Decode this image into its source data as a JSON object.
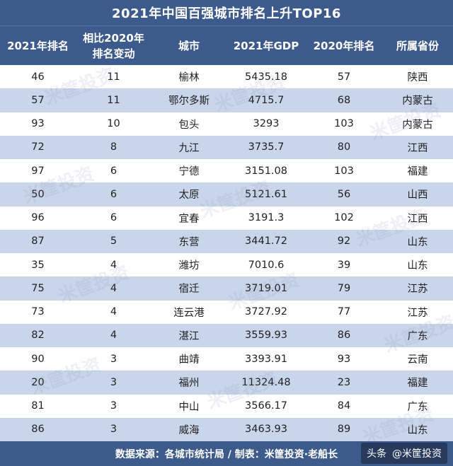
{
  "title": "2021年中国百强城市排名上升TOP16",
  "headers": {
    "rank_2021": "2021年排名",
    "change_line1": "相比2020年",
    "change_line2": "排名变动",
    "city": "城市",
    "gdp_2021": "2021年GDP",
    "rank_2020": "2020年排名",
    "province": "所属省份"
  },
  "rows": [
    {
      "rank_2021": "46",
      "change": "11",
      "city": "榆林",
      "gdp": "5435.18",
      "rank_2020": "57",
      "province": "陕西"
    },
    {
      "rank_2021": "57",
      "change": "11",
      "city": "鄂尔多斯",
      "gdp": "4715.7",
      "rank_2020": "68",
      "province": "内蒙古"
    },
    {
      "rank_2021": "93",
      "change": "10",
      "city": "包头",
      "gdp": "3293",
      "rank_2020": "103",
      "province": "内蒙古"
    },
    {
      "rank_2021": "72",
      "change": "8",
      "city": "九江",
      "gdp": "3735.7",
      "rank_2020": "80",
      "province": "江西"
    },
    {
      "rank_2021": "97",
      "change": "6",
      "city": "宁德",
      "gdp": "3151.08",
      "rank_2020": "103",
      "province": "福建"
    },
    {
      "rank_2021": "50",
      "change": "6",
      "city": "太原",
      "gdp": "5121.61",
      "rank_2020": "56",
      "province": "山西"
    },
    {
      "rank_2021": "96",
      "change": "6",
      "city": "宜春",
      "gdp": "3191.3",
      "rank_2020": "102",
      "province": "江西"
    },
    {
      "rank_2021": "87",
      "change": "5",
      "city": "东营",
      "gdp": "3441.72",
      "rank_2020": "92",
      "province": "山东"
    },
    {
      "rank_2021": "35",
      "change": "4",
      "city": "潍坊",
      "gdp": "7010.6",
      "rank_2020": "39",
      "province": "山东"
    },
    {
      "rank_2021": "75",
      "change": "4",
      "city": "宿迁",
      "gdp": "3719.01",
      "rank_2020": "79",
      "province": "江苏"
    },
    {
      "rank_2021": "73",
      "change": "4",
      "city": "连云港",
      "gdp": "3727.92",
      "rank_2020": "77",
      "province": "江苏"
    },
    {
      "rank_2021": "82",
      "change": "4",
      "city": "湛江",
      "gdp": "3559.93",
      "rank_2020": "86",
      "province": "广东"
    },
    {
      "rank_2021": "90",
      "change": "3",
      "city": "曲靖",
      "gdp": "3393.91",
      "rank_2020": "93",
      "province": "云南"
    },
    {
      "rank_2021": "20",
      "change": "3",
      "city": "福州",
      "gdp": "11324.48",
      "rank_2020": "23",
      "province": "福建"
    },
    {
      "rank_2021": "81",
      "change": "3",
      "city": "中山",
      "gdp": "3566.17",
      "rank_2020": "84",
      "province": "广东"
    },
    {
      "rank_2021": "86",
      "change": "3",
      "city": "威海",
      "gdp": "3463.93",
      "rank_2020": "89",
      "province": "山东"
    }
  ],
  "footer": {
    "text": "数据来源：各城市统计局 / 制表：米筐投资·老船长"
  },
  "badge": {
    "platform": "头条",
    "account": "@米筐投资"
  },
  "watermark": {
    "text": "米筐投资"
  }
}
